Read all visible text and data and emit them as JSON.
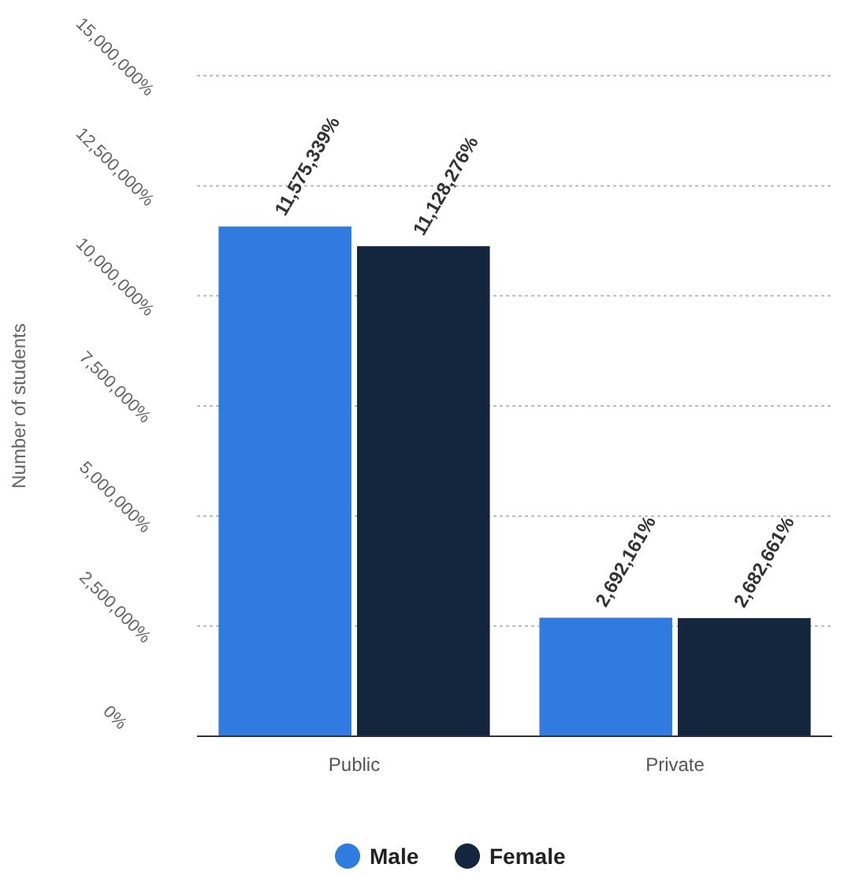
{
  "chart_data": {
    "type": "bar",
    "ylabel": "Number of students",
    "categories": [
      "Public",
      "Private"
    ],
    "series": [
      {
        "name": "Male",
        "color": "#2f7be0",
        "values": [
          11575339,
          2692161
        ],
        "value_labels": [
          "11,575,339%",
          "2,692,161%"
        ]
      },
      {
        "name": "Female",
        "color": "#14263d",
        "values": [
          11128276,
          2682661
        ],
        "value_labels": [
          "11,128,276%",
          "2,682,661%"
        ]
      }
    ],
    "ylim": [
      0,
      15000000
    ],
    "yticks": [
      {
        "value": 0,
        "label": "0%"
      },
      {
        "value": 2500000,
        "label": "2,500,000%"
      },
      {
        "value": 5000000,
        "label": "5,000,000%"
      },
      {
        "value": 7500000,
        "label": "7,500,000%"
      },
      {
        "value": 10000000,
        "label": "10,000,000%"
      },
      {
        "value": 12500000,
        "label": "12,500,000%"
      },
      {
        "value": 15000000,
        "label": "15,000,000%"
      }
    ],
    "grid": "y",
    "legend": "bottom"
  }
}
